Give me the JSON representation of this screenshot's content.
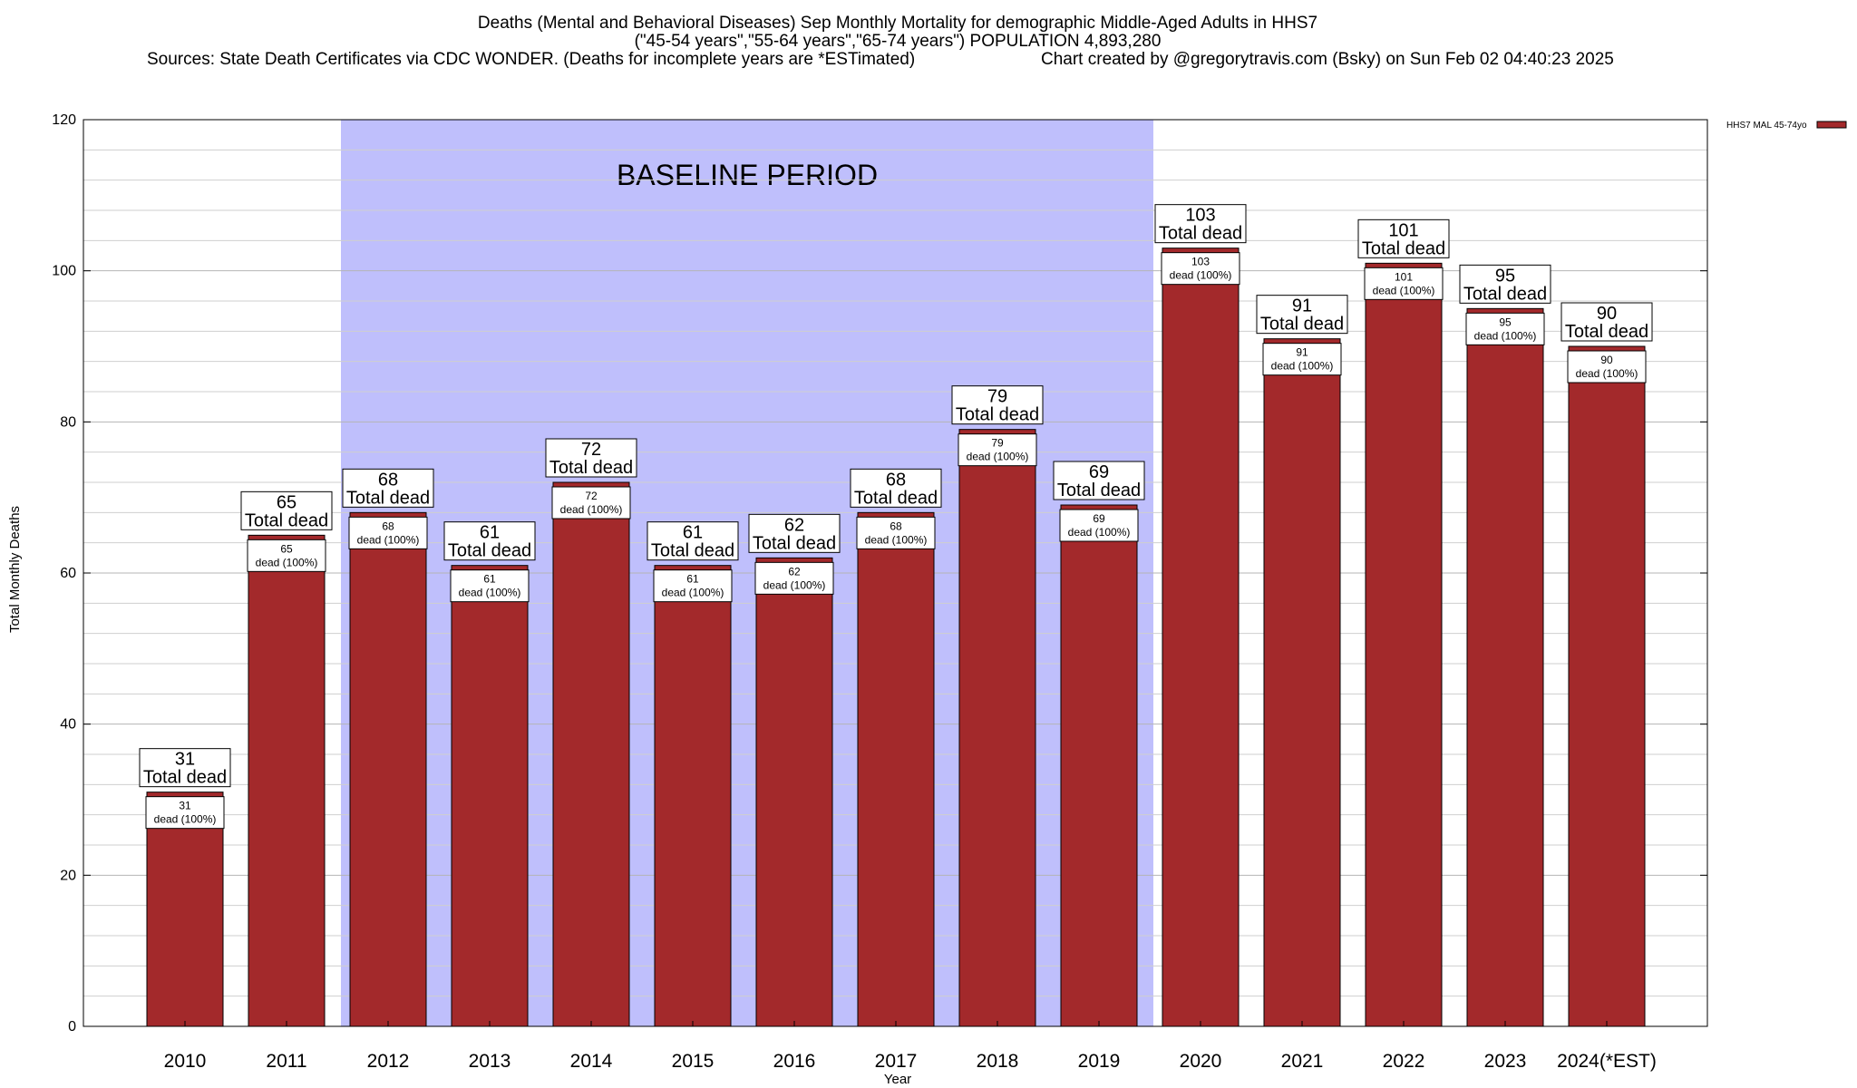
{
  "header": {
    "title_line1": "Deaths (Mental and Behavioral Diseases) Sep Monthly Mortality for demographic Middle-Aged Adults in HHS7",
    "title_line2": "(\"45-54 years\",\"55-64 years\",\"65-74 years\") POPULATION 4,893,280",
    "sources": "Sources: State Death Certificates via CDC WONDER. (Deaths for incomplete years are *ESTimated)",
    "credit": "Chart created by @gregorytravis.com (Bsky) on Sun Feb 02 04:40:23 2025"
  },
  "chart_data": {
    "type": "bar",
    "categories": [
      "2010",
      "2011",
      "2012",
      "2013",
      "2014",
      "2015",
      "2016",
      "2017",
      "2018",
      "2019",
      "2020",
      "2021",
      "2022",
      "2023",
      "2024(*EST)"
    ],
    "series": [
      {
        "name": "HHS7 MAL 45-74yo",
        "values": [
          31,
          65,
          68,
          61,
          72,
          61,
          62,
          68,
          79,
          69,
          103,
          91,
          101,
          95,
          90
        ],
        "color": "#a3292b"
      }
    ],
    "xlabel": "Year",
    "ylabel": "Total Monthly Deaths",
    "ylim": [
      0,
      120
    ],
    "yticks": [
      0,
      20,
      40,
      60,
      80,
      100,
      120
    ],
    "grid": true,
    "legend_position": "top-right",
    "top_label_caption": "Total dead",
    "inner_label_caption": "dead (100%)",
    "baseline_period": {
      "label": "BASELINE PERIOD",
      "start": "2012",
      "end": "2019",
      "color": "#bfbffc"
    }
  }
}
